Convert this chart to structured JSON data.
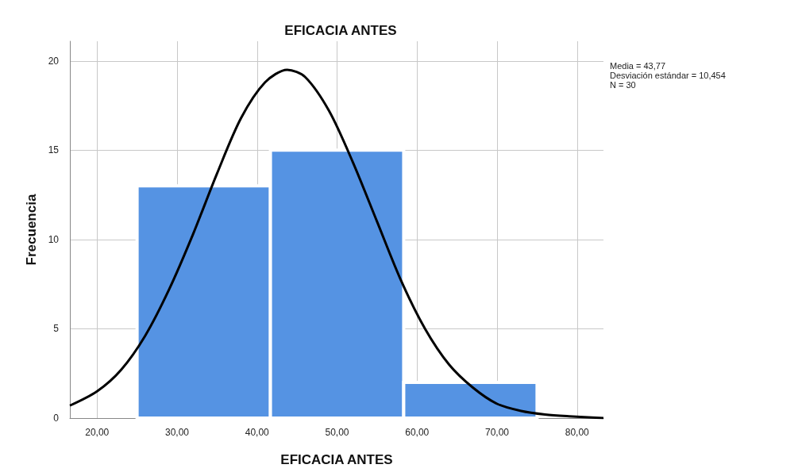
{
  "chart_data": {
    "type": "histogram",
    "title": "EFICACIA ANTES",
    "xlabel": "EFICACIA ANTES",
    "ylabel": "Frecuencia",
    "bins": [
      25,
      41.67,
      58.33,
      75
    ],
    "values": [
      13,
      15,
      2
    ],
    "color": "#5593e3",
    "series": [
      {
        "type": "line",
        "color": "#000000",
        "marker": "none",
        "line_style": "solid",
        "x": [
          16.6,
          20,
          23,
          26,
          29,
          32,
          35,
          38,
          41,
          43.77,
          46,
          49,
          52,
          55,
          58,
          61,
          64,
          67,
          70,
          73,
          76,
          79,
          83.3
        ],
        "values": [
          0.7,
          1.5,
          2.7,
          4.6,
          7.2,
          10.3,
          13.7,
          16.8,
          18.8,
          19.5,
          19.1,
          17.2,
          14.3,
          11.0,
          7.7,
          5.0,
          3.0,
          1.7,
          0.8,
          0.4,
          0.2,
          0.1,
          0.0
        ]
      }
    ],
    "xlim": [
      16.6,
      83.3
    ],
    "xticks": [
      {
        "value": 20,
        "label": "20,00"
      },
      {
        "value": 30,
        "label": "30,00"
      },
      {
        "value": 40,
        "label": "40,00"
      },
      {
        "value": 50,
        "label": "50,00"
      },
      {
        "value": 60,
        "label": "60,00"
      },
      {
        "value": 70,
        "label": "70,00"
      },
      {
        "value": 80,
        "label": "80,00"
      }
    ],
    "ylim": [
      0,
      21.1
    ],
    "yticks": [
      0,
      5,
      10,
      15,
      20
    ],
    "grid": true,
    "annotations": [
      "Media = 43,77",
      "Desviación estándar = 10,454",
      "N = 30"
    ]
  }
}
